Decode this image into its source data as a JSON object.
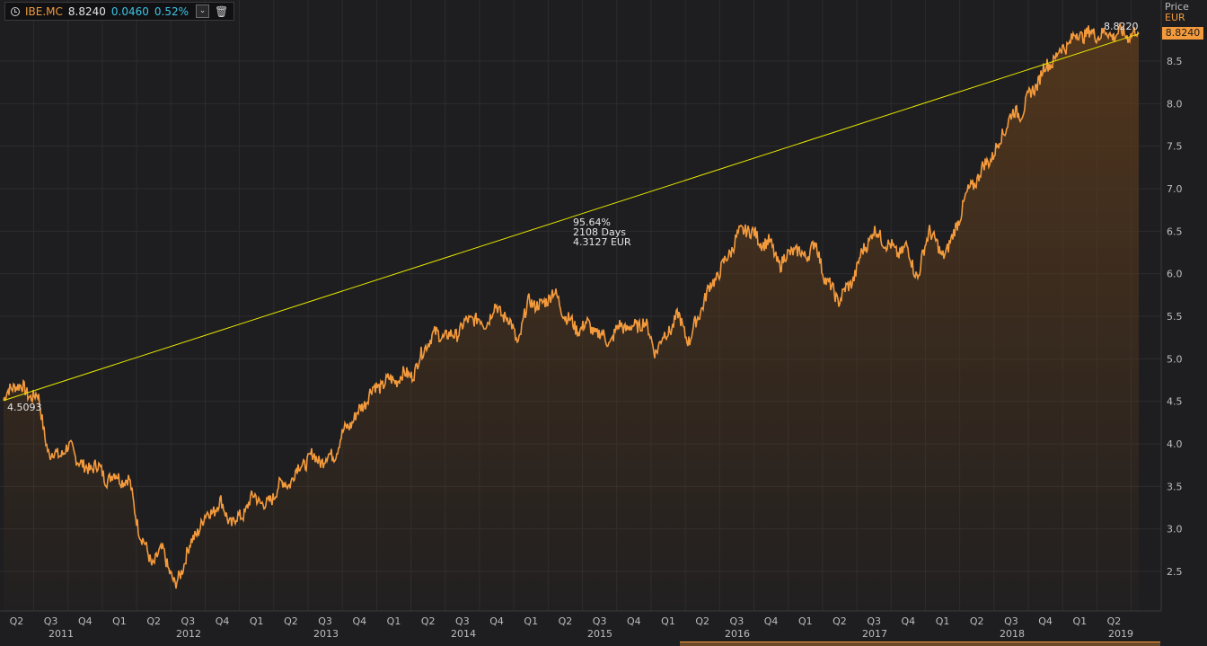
{
  "legend": {
    "ric": "IBE.MC",
    "last": "8.8240",
    "change": "0.0460",
    "change_pct": "0.52%",
    "icons": [
      "clock-icon",
      "chevron-down-icon",
      "trash-icon"
    ]
  },
  "axis_header": {
    "price_label": "Price",
    "currency": "EUR"
  },
  "last_price_tag": "8.8240",
  "colors": {
    "background": "#1e1e20",
    "line": "#f39a3c",
    "area_top": "#5a3a1c",
    "trendline": "#e6e600",
    "change_text": "#3dc3e6"
  },
  "chart_data": {
    "type": "area",
    "title": "",
    "xlabel": "",
    "ylabel": "Price",
    "unit": "EUR",
    "ylim": [
      2.05,
      8.95
    ],
    "y_ticks": [
      "2.5",
      "3.0",
      "3.5",
      "4.0",
      "4.5",
      "5.0",
      "5.5",
      "6.0",
      "6.5",
      "7.0",
      "7.5",
      "8.0",
      "8.5"
    ],
    "x_quarter_labels": [
      "Q2",
      "Q3",
      "Q4",
      "Q1",
      "Q2",
      "Q3",
      "Q4",
      "Q1",
      "Q2",
      "Q3",
      "Q4",
      "Q1",
      "Q2",
      "Q3",
      "Q4",
      "Q1",
      "Q2",
      "Q3",
      "Q4",
      "Q1",
      "Q2",
      "Q3",
      "Q4",
      "Q1",
      "Q2",
      "Q3",
      "Q4",
      "Q1",
      "Q2",
      "Q3",
      "Q4",
      "Q1",
      "Q2"
    ],
    "x_year_labels": [
      "2011",
      "2012",
      "2013",
      "2014",
      "2015",
      "2016",
      "2017",
      "2018",
      "2019"
    ],
    "grid": true,
    "legend": "top-left",
    "series": [
      {
        "x": [
          "2011-04",
          "2011-05",
          "2011-06",
          "2011-07",
          "2011-08",
          "2011-09",
          "2011-10",
          "2011-11",
          "2011-12",
          "2012-01",
          "2012-02",
          "2012-03",
          "2012-04",
          "2012-05",
          "2012-06",
          "2012-07",
          "2012-08",
          "2012-09",
          "2012-10",
          "2012-11",
          "2012-12",
          "2013-01",
          "2013-02",
          "2013-03",
          "2013-04",
          "2013-05",
          "2013-06",
          "2013-07",
          "2013-08",
          "2013-09",
          "2013-10",
          "2013-11",
          "2013-12",
          "2014-01",
          "2014-02",
          "2014-03",
          "2014-04",
          "2014-05",
          "2014-06",
          "2014-07",
          "2014-08",
          "2014-09",
          "2014-10",
          "2014-11",
          "2014-12",
          "2015-01",
          "2015-02",
          "2015-03",
          "2015-04",
          "2015-05",
          "2015-06",
          "2015-07",
          "2015-08",
          "2015-09",
          "2015-10",
          "2015-11",
          "2015-12",
          "2016-01",
          "2016-02",
          "2016-03",
          "2016-04",
          "2016-05",
          "2016-06",
          "2016-07",
          "2016-08",
          "2016-09",
          "2016-10",
          "2016-11",
          "2016-12",
          "2017-01",
          "2017-02",
          "2017-03",
          "2017-04",
          "2017-05",
          "2017-06",
          "2017-07",
          "2017-08",
          "2017-09",
          "2017-10",
          "2017-11",
          "2017-12",
          "2018-01",
          "2018-02",
          "2018-03",
          "2018-04",
          "2018-05",
          "2018-06",
          "2018-07",
          "2018-08",
          "2018-09",
          "2018-10",
          "2018-11",
          "2018-12",
          "2019-01",
          "2019-02",
          "2019-03",
          "2019-04",
          "2019-05",
          "2019-06",
          "2019-07"
        ],
        "values": [
          4.51,
          4.72,
          4.6,
          4.55,
          3.85,
          3.9,
          3.95,
          3.7,
          3.75,
          3.6,
          3.62,
          3.55,
          2.9,
          2.6,
          2.75,
          2.3,
          2.7,
          3.0,
          3.2,
          3.3,
          3.05,
          3.2,
          3.4,
          3.25,
          3.5,
          3.55,
          3.75,
          3.85,
          3.8,
          3.9,
          4.2,
          4.35,
          4.6,
          4.7,
          4.75,
          4.8,
          4.85,
          5.2,
          5.3,
          5.25,
          5.35,
          5.5,
          5.4,
          5.6,
          5.5,
          5.2,
          5.7,
          5.6,
          5.8,
          5.55,
          5.35,
          5.4,
          5.3,
          5.2,
          5.4,
          5.35,
          5.45,
          5.1,
          5.3,
          5.5,
          5.2,
          5.6,
          5.9,
          6.1,
          6.4,
          6.55,
          6.4,
          6.35,
          6.1,
          6.3,
          6.2,
          6.35,
          5.9,
          5.7,
          5.85,
          6.2,
          6.5,
          6.4,
          6.25,
          6.3,
          5.95,
          6.55,
          6.2,
          6.4,
          6.85,
          7.1,
          7.3,
          7.5,
          7.85,
          7.9,
          8.15,
          8.4,
          8.55,
          8.7,
          8.82,
          8.82,
          8.82,
          8.82,
          8.82,
          8.82
        ]
      }
    ],
    "annotations": {
      "start_value": "4.5093",
      "end_value": "8.8220",
      "change_pct": "95.64%",
      "days": "2108 Days",
      "change_abs": "4.3127 EUR"
    }
  }
}
